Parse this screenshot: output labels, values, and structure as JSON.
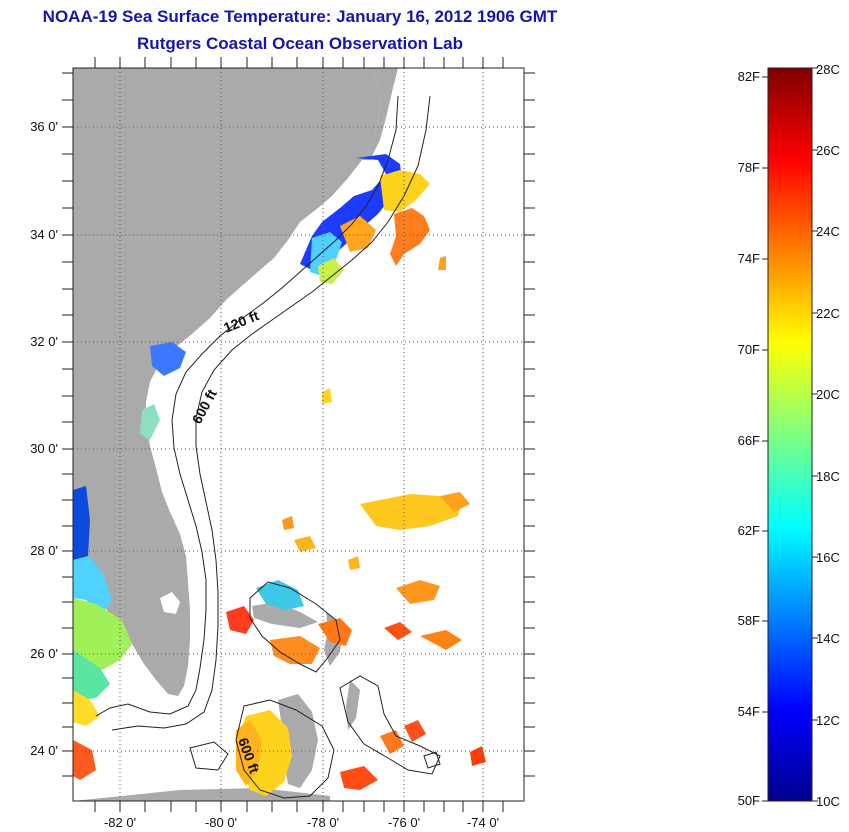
{
  "title": "NOAA-19 Sea Surface Temperature:  January 16, 2012 1906 GMT",
  "subtitle": "Rutgers Coastal Ocean Observation Lab",
  "lat_labels": [
    "36 0'",
    "34 0'",
    "32 0'",
    "30 0'",
    "28 0'",
    "26 0'",
    "24 0'"
  ],
  "lon_labels": [
    "-82 0'",
    "-80 0'",
    "-78 0'",
    "-76 0'",
    "-74 0'"
  ],
  "contour_labels": [
    "120 ft",
    "600 ft",
    "600 ft"
  ],
  "colorbar": {
    "fahrenheit_labels": [
      "82F",
      "78F",
      "74F",
      "70F",
      "66F",
      "62F",
      "58F",
      "54F",
      "50F"
    ],
    "celsius_labels": [
      "28C",
      "26C",
      "24C",
      "22C",
      "20C",
      "18C",
      "16C",
      "14C",
      "12C",
      "10C"
    ],
    "range_celsius": [
      10,
      28
    ]
  },
  "colors": {
    "title": "#1515b0",
    "land": "#aaaaaa",
    "ocean": "#ffffff",
    "grid": "#555555"
  }
}
